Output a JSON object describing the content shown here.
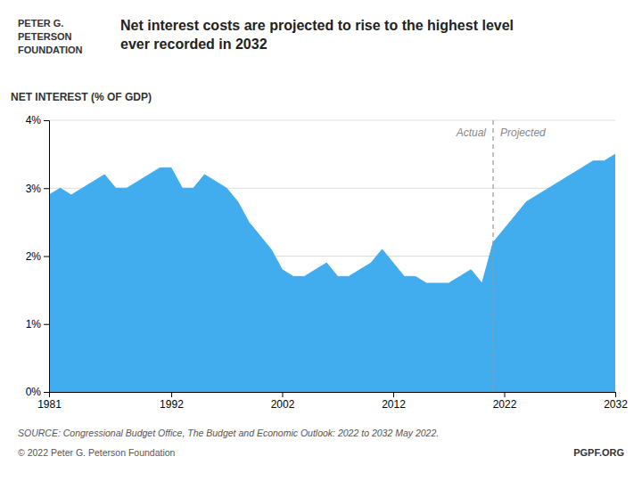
{
  "chart_data": {
    "type": "area",
    "title": "Net interest costs are projected to rise to the highest level\never recorded in 2032",
    "y_label": "NET INTEREST (% OF GDP)",
    "x": [
      1981,
      1982,
      1983,
      1984,
      1985,
      1986,
      1987,
      1988,
      1989,
      1990,
      1991,
      1992,
      1993,
      1994,
      1995,
      1996,
      1997,
      1998,
      1999,
      2000,
      2001,
      2002,
      2003,
      2004,
      2005,
      2006,
      2007,
      2008,
      2009,
      2010,
      2011,
      2012,
      2013,
      2014,
      2015,
      2016,
      2017,
      2018,
      2019,
      2020,
      2021,
      2022,
      2023,
      2024,
      2025,
      2026,
      2027,
      2028,
      2029,
      2030,
      2031,
      2032
    ],
    "values": [
      2.9,
      3.0,
      2.9,
      3.0,
      3.1,
      3.2,
      3.0,
      3.0,
      3.1,
      3.2,
      3.3,
      3.3,
      3.0,
      3.0,
      3.2,
      3.1,
      3.0,
      2.8,
      2.5,
      2.3,
      2.1,
      1.8,
      1.7,
      1.7,
      1.8,
      1.9,
      1.7,
      1.7,
      1.8,
      1.9,
      2.1,
      1.9,
      1.7,
      1.7,
      1.6,
      1.6,
      1.6,
      1.7,
      1.8,
      1.6,
      2.2,
      2.4,
      2.6,
      2.8,
      2.9,
      3.0,
      3.1,
      3.2,
      3.3,
      3.4,
      3.4,
      3.5
    ],
    "color": "#41ADEF",
    "xlim": [
      1981,
      2032
    ],
    "xticks": [
      1981,
      1992,
      2002,
      2012,
      2022,
      2032
    ],
    "ylim": [
      0,
      4.0
    ],
    "yticks": [
      {
        "value": 0,
        "label": "0%"
      },
      {
        "value": 1,
        "label": "1%"
      },
      {
        "value": 2,
        "label": "2%"
      },
      {
        "value": 3,
        "label": "3%"
      },
      {
        "value": 4,
        "label": "4%"
      }
    ],
    "grid": true,
    "vline": {
      "x": 2021,
      "labels": [
        "Actual",
        "Projected"
      ]
    },
    "source": "SOURCE: Congressional Budget Office, The Budget and Economic Outlook: 2022 to 2032 May 2022.",
    "copyright": "© 2022 Peter G. Peterson Foundation",
    "credit": "PGPF.ORG",
    "logo_text": [
      "PETER G.",
      "PETERSON",
      "FOUNDATION"
    ]
  }
}
